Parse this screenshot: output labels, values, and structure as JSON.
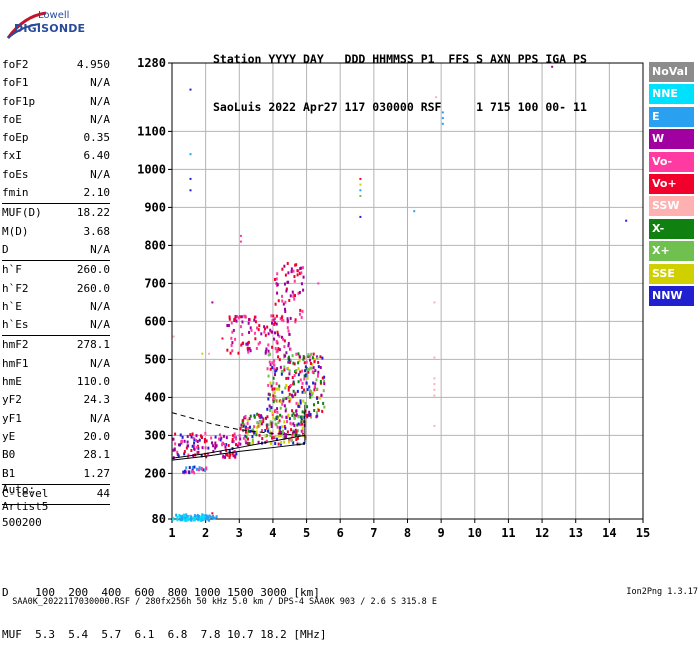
{
  "logo": {
    "line1": "Lowell",
    "line2": "DIGISONDE"
  },
  "header": {
    "line1": "Station YYYY DAY   DDD HHMMSS P1  FFS S AXN PPS IGA PS",
    "line2": "SaoLuis 2022 Apr27 117 030000 RSF     1 715 100 00- 11"
  },
  "params": [
    {
      "label": "foF2",
      "value": "4.950"
    },
    {
      "label": "foF1",
      "value": "N/A"
    },
    {
      "label": "foF1p",
      "value": "N/A"
    },
    {
      "label": "foE",
      "value": "N/A"
    },
    {
      "label": "foEp",
      "value": "0.35"
    },
    {
      "label": "fxI",
      "value": "6.40"
    },
    {
      "label": "foEs",
      "value": "N/A"
    },
    {
      "label": "fmin",
      "value": "2.10",
      "sep": true
    },
    {
      "label": "MUF(D)",
      "value": "18.22"
    },
    {
      "label": "M(D)",
      "value": "3.68"
    },
    {
      "label": "D",
      "value": "N/A",
      "sep": true
    },
    {
      "label": "h`F",
      "value": "260.0"
    },
    {
      "label": "h`F2",
      "value": "260.0"
    },
    {
      "label": "h`E",
      "value": "N/A"
    },
    {
      "label": "h`Es",
      "value": "N/A",
      "sep": true
    },
    {
      "label": "hmF2",
      "value": "278.1"
    },
    {
      "label": "hmF1",
      "value": "N/A"
    },
    {
      "label": "hmE",
      "value": "110.0"
    },
    {
      "label": "yF2",
      "value": "24.3"
    },
    {
      "label": "yF1",
      "value": "N/A"
    },
    {
      "label": "yE",
      "value": "20.0"
    },
    {
      "label": "B0",
      "value": "28.1"
    },
    {
      "label": "B1",
      "value": "1.27",
      "sep": true
    },
    {
      "label": "C-level",
      "value": "44",
      "sep": true
    }
  ],
  "auto": {
    "line1": "Auto:",
    "line2": "Artist5",
    "line3": "500200"
  },
  "legend": [
    {
      "label": "NoVal",
      "color": "#8c8c8c"
    },
    {
      "label": "NNE",
      "color": "#00e0ff"
    },
    {
      "label": "E",
      "color": "#2aa0f0"
    },
    {
      "label": "W",
      "color": "#a000a0"
    },
    {
      "label": "Vo-",
      "color": "#ff3aa0"
    },
    {
      "label": "Vo+",
      "color": "#f0002a"
    },
    {
      "label": "SSW",
      "color": "#ffb0b0"
    },
    {
      "label": "X-",
      "color": "#108010"
    },
    {
      "label": "X+",
      "color": "#70c050"
    },
    {
      "label": "SSE",
      "color": "#d0d000"
    },
    {
      "label": "NNW",
      "color": "#2020d0"
    }
  ],
  "dtable": {
    "line1": "D    100  200  400  600  800 1000 1500 3000 [km]",
    "line2": "MUF  5.3  5.4  5.7  6.1  6.8  7.8 10.7 18.2 [MHz]"
  },
  "footer": {
    "left": "SAA0K_2022117030000.RSF / 280fx256h 50 kHz 5.0 km / DPS-4 SAA0K 903 / 2.6 S 315.8 E",
    "right": "Ion2Png 1.3.17"
  },
  "chart_data": {
    "type": "scatter",
    "title": "",
    "xlabel": "",
    "ylabel": "",
    "xlim": [
      1,
      15
    ],
    "ylim": [
      80,
      1280
    ],
    "x_ticks": [
      1,
      2,
      3,
      4,
      5,
      6,
      7,
      8,
      9,
      10,
      11,
      12,
      13,
      14,
      15
    ],
    "y_ticks": [
      80,
      200,
      300,
      400,
      500,
      600,
      700,
      800,
      900,
      1000,
      1100,
      1280
    ],
    "grid": true,
    "echo_clusters": [
      {
        "x_range": [
          1.0,
          2.1
        ],
        "h_range": [
          80,
          95
        ],
        "density": 90,
        "colors": [
          "#2aa0f0",
          "#00e0ff"
        ]
      },
      {
        "x_range": [
          2.0,
          2.3
        ],
        "h_range": [
          82,
          92
        ],
        "density": 8,
        "colors": [
          "#2aa0f0"
        ]
      },
      {
        "x_range": [
          1.3,
          2.0
        ],
        "h_range": [
          205,
          222
        ],
        "density": 30,
        "colors": [
          "#2020d0",
          "#2aa0f0",
          "#ff3aa0"
        ]
      },
      {
        "x_range": [
          1.0,
          3.0
        ],
        "h_range": [
          245,
          310
        ],
        "density": 120,
        "colors": [
          "#2020d0",
          "#a000a0",
          "#f0002a",
          "#ff3aa0"
        ]
      },
      {
        "x_range": [
          3.0,
          5.0
        ],
        "h_range": [
          280,
          360
        ],
        "density": 200,
        "colors": [
          "#a000a0",
          "#f0002a",
          "#ff3aa0",
          "#2020d0",
          "#70c050",
          "#108010",
          "#d0d000"
        ]
      },
      {
        "x_range": [
          3.8,
          5.5
        ],
        "h_range": [
          350,
          520
        ],
        "density": 260,
        "colors": [
          "#a000a0",
          "#f0002a",
          "#ff3aa0",
          "#2020d0",
          "#108010",
          "#70c050",
          "#d0d000"
        ]
      },
      {
        "x_range": [
          2.6,
          4.5
        ],
        "h_range": [
          520,
          620
        ],
        "density": 120,
        "colors": [
          "#f0002a",
          "#ff3aa0",
          "#a000a0"
        ]
      },
      {
        "x_range": [
          4.0,
          4.9
        ],
        "h_range": [
          600,
          760
        ],
        "density": 60,
        "colors": [
          "#a000a0",
          "#ff3aa0",
          "#f0002a"
        ]
      }
    ],
    "isolated_points": [
      {
        "x": 1.55,
        "h": 1210,
        "color": "#2020d0"
      },
      {
        "x": 1.55,
        "h": 1040,
        "color": "#2aa0f0"
      },
      {
        "x": 1.55,
        "h": 975,
        "color": "#2020d0"
      },
      {
        "x": 1.55,
        "h": 945,
        "color": "#2020d0"
      },
      {
        "x": 6.6,
        "h": 975,
        "color": "#f0002a"
      },
      {
        "x": 6.6,
        "h": 960,
        "color": "#d0d000"
      },
      {
        "x": 6.6,
        "h": 945,
        "color": "#2aa0f0"
      },
      {
        "x": 6.6,
        "h": 930,
        "color": "#70c050"
      },
      {
        "x": 6.6,
        "h": 875,
        "color": "#2020d0"
      },
      {
        "x": 8.2,
        "h": 890,
        "color": "#2aa0f0"
      },
      {
        "x": 8.85,
        "h": 1190,
        "color": "#ffb0b0"
      },
      {
        "x": 9.05,
        "h": 1150,
        "color": "#2aa0f0"
      },
      {
        "x": 9.05,
        "h": 1135,
        "color": "#2aa0f0"
      },
      {
        "x": 9.05,
        "h": 1120,
        "color": "#2aa0f0"
      },
      {
        "x": 12.3,
        "h": 1270,
        "color": "#a000a0"
      },
      {
        "x": 14.5,
        "h": 865,
        "color": "#2020d0"
      },
      {
        "x": 8.8,
        "h": 650,
        "color": "#ffb0b0"
      },
      {
        "x": 8.8,
        "h": 505,
        "color": "#ffb0b0"
      },
      {
        "x": 8.8,
        "h": 450,
        "color": "#ffb0b0"
      },
      {
        "x": 8.8,
        "h": 435,
        "color": "#ffb0b0"
      },
      {
        "x": 8.8,
        "h": 420,
        "color": "#ffb0b0"
      },
      {
        "x": 8.8,
        "h": 405,
        "color": "#ffb0b0"
      },
      {
        "x": 8.8,
        "h": 325,
        "color": "#ffb0b0"
      },
      {
        "x": 1.9,
        "h": 515,
        "color": "#d0d000"
      },
      {
        "x": 2.1,
        "h": 515,
        "color": "#ffb0b0"
      },
      {
        "x": 2.2,
        "h": 650,
        "color": "#a000a0"
      },
      {
        "x": 3.05,
        "h": 825,
        "color": "#ff3aa0"
      },
      {
        "x": 3.05,
        "h": 810,
        "color": "#ff3aa0"
      },
      {
        "x": 2.5,
        "h": 555,
        "color": "#f0002a"
      },
      {
        "x": 1.05,
        "h": 560,
        "color": "#ffb0b0"
      },
      {
        "x": 2.2,
        "h": 95,
        "color": "#f0002a"
      },
      {
        "x": 5.35,
        "h": 700,
        "color": "#ff3aa0"
      }
    ],
    "trace_dashed": {
      "x": [
        1.0,
        2.2,
        3.0,
        4.0,
        4.95
      ],
      "h": [
        360,
        330,
        315,
        305,
        300
      ]
    },
    "trace_solid_lower": {
      "x": [
        1.0,
        2.0,
        3.0,
        4.0,
        4.95
      ],
      "h": [
        235,
        245,
        258,
        268,
        278
      ]
    },
    "trace_solid_upper": {
      "x": [
        1.0,
        2.0,
        3.0,
        4.0,
        4.95
      ],
      "h": [
        240,
        252,
        268,
        285,
        300
      ]
    },
    "trace_vertical": {
      "x": [
        4.95,
        4.95
      ],
      "h": [
        278,
        380
      ]
    }
  }
}
